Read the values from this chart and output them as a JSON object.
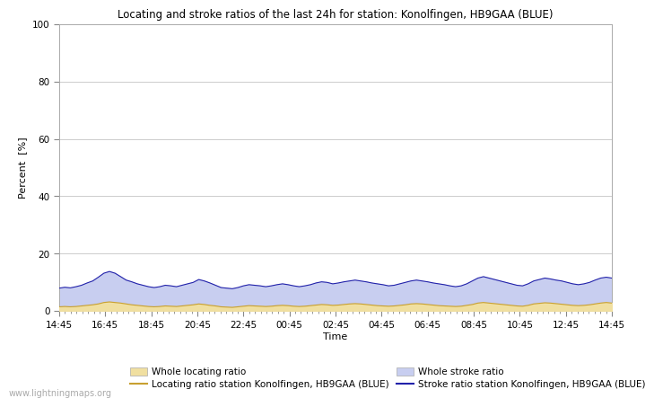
{
  "title": "Locating and stroke ratios of the last 24h for station: Konolfingen, HB9GAA (BLUE)",
  "ylabel": "Percent  [%]",
  "xlabel": "Time",
  "ylim": [
    0,
    100
  ],
  "yticks": [
    0,
    20,
    40,
    60,
    80,
    100
  ],
  "xtick_labels": [
    "14:45",
    "16:45",
    "18:45",
    "20:45",
    "22:45",
    "00:45",
    "02:45",
    "04:45",
    "06:45",
    "08:45",
    "10:45",
    "12:45",
    "14:45"
  ],
  "background_color": "#ffffff",
  "plot_bg_color": "#ffffff",
  "grid_color": "#cccccc",
  "fill_locating_color": "#f0dfa0",
  "fill_stroke_color": "#c8cef0",
  "line_locating_color": "#c8a030",
  "line_stroke_color": "#2222aa",
  "watermark": "www.lightningmaps.org",
  "legend_labels": [
    "Whole locating ratio",
    "Locating ratio station Konolfingen, HB9GAA (BLUE)",
    "Whole stroke ratio",
    "Stroke ratio station Konolfingen, HB9GAA (BLUE)"
  ],
  "stroke_ratio": [
    8.0,
    8.3,
    8.1,
    8.5,
    9.0,
    9.8,
    10.5,
    11.8,
    13.2,
    13.8,
    13.2,
    12.0,
    10.8,
    10.2,
    9.5,
    9.0,
    8.5,
    8.2,
    8.5,
    9.0,
    8.8,
    8.5,
    9.0,
    9.5,
    10.0,
    11.0,
    10.5,
    9.8,
    9.0,
    8.2,
    8.0,
    7.8,
    8.2,
    8.8,
    9.2,
    9.0,
    8.8,
    8.5,
    8.8,
    9.2,
    9.5,
    9.2,
    8.8,
    8.5,
    8.8,
    9.2,
    9.8,
    10.2,
    10.0,
    9.5,
    9.8,
    10.2,
    10.5,
    10.8,
    10.5,
    10.2,
    9.8,
    9.5,
    9.2,
    8.8,
    9.0,
    9.5,
    10.0,
    10.5,
    10.8,
    10.5,
    10.2,
    9.8,
    9.5,
    9.2,
    8.8,
    8.5,
    8.8,
    9.5,
    10.5,
    11.5,
    12.0,
    11.5,
    11.0,
    10.5,
    10.0,
    9.5,
    9.0,
    8.8,
    9.5,
    10.5,
    11.0,
    11.5,
    11.2,
    10.8,
    10.5,
    10.0,
    9.5,
    9.2,
    9.5,
    10.0,
    10.8,
    11.5,
    11.8,
    11.5
  ],
  "locating_ratio": [
    1.5,
    1.6,
    1.5,
    1.6,
    1.8,
    2.0,
    2.2,
    2.5,
    3.0,
    3.2,
    3.0,
    2.8,
    2.5,
    2.2,
    2.0,
    1.8,
    1.6,
    1.5,
    1.6,
    1.8,
    1.7,
    1.6,
    1.8,
    2.0,
    2.2,
    2.5,
    2.3,
    2.0,
    1.8,
    1.5,
    1.4,
    1.3,
    1.5,
    1.7,
    1.9,
    1.8,
    1.7,
    1.6,
    1.7,
    1.9,
    2.0,
    1.9,
    1.7,
    1.6,
    1.7,
    1.9,
    2.1,
    2.3,
    2.2,
    2.0,
    2.1,
    2.3,
    2.5,
    2.6,
    2.5,
    2.3,
    2.1,
    1.9,
    1.8,
    1.7,
    1.8,
    2.0,
    2.2,
    2.5,
    2.6,
    2.5,
    2.3,
    2.1,
    1.9,
    1.8,
    1.7,
    1.6,
    1.7,
    2.0,
    2.3,
    2.8,
    3.0,
    2.8,
    2.6,
    2.4,
    2.2,
    2.0,
    1.8,
    1.7,
    2.0,
    2.5,
    2.7,
    2.9,
    2.8,
    2.6,
    2.4,
    2.2,
    2.0,
    1.9,
    2.0,
    2.2,
    2.5,
    2.8,
    3.0,
    2.8
  ]
}
